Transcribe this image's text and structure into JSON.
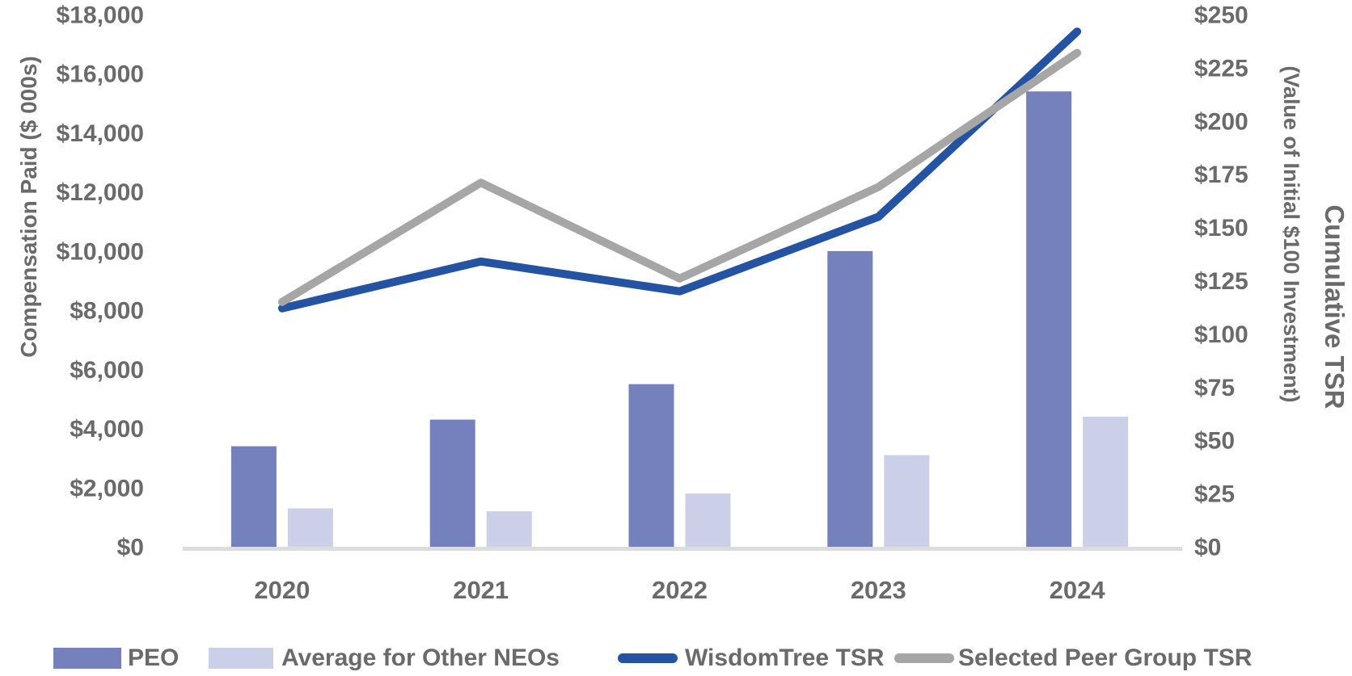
{
  "colors": {
    "peo_bar": "#7581BD",
    "neo_bar": "#CBD0E8",
    "wisdomtree_line": "#2453A4",
    "peer_line": "#A6A6A6",
    "axis_line": "#DCDCDC",
    "text": "#6A6A6A",
    "background": "#FFFFFF"
  },
  "chart_data": {
    "type": "combo_bar_line",
    "grid": false,
    "legend_position": "bottom",
    "categories": [
      "2020",
      "2021",
      "2022",
      "2023",
      "2024"
    ],
    "bar_series": [
      {
        "name": "PEO",
        "axis": "left",
        "color": "#7581BD",
        "values": [
          3400,
          4300,
          5500,
          10000,
          15400
        ]
      },
      {
        "name": "Average for Other NEOs",
        "axis": "left",
        "color": "#CBD0E8",
        "values": [
          1300,
          1200,
          1800,
          3100,
          4400
        ]
      }
    ],
    "line_series": [
      {
        "name": "WisdomTree TSR",
        "axis": "right",
        "color": "#2453A4",
        "values": [
          112,
          134,
          120,
          155,
          242
        ]
      },
      {
        "name": "Selected Peer Group TSR",
        "axis": "right",
        "color": "#A6A6A6",
        "values": [
          115,
          171,
          126,
          169,
          232
        ]
      }
    ],
    "left_axis": {
      "title": "Compensation Paid ($ 000s)",
      "min": 0,
      "max": 18000,
      "step": 2000,
      "tick_labels": [
        "$0",
        "$2,000",
        "$4,000",
        "$6,000",
        "$8,000",
        "$10,000",
        "$12,000",
        "$14,000",
        "$16,000",
        "$18,000"
      ]
    },
    "right_axis": {
      "title_line1": "Cumulative TSR",
      "title_line2": "(Value of Initial $100 Investment)",
      "min": 0,
      "max": 250,
      "step": 25,
      "tick_labels": [
        "$0",
        "$25",
        "$50",
        "$75",
        "$100",
        "$125",
        "$150",
        "$175",
        "$200",
        "$225",
        "$250"
      ]
    },
    "legend": [
      {
        "label": "PEO",
        "swatch": "bar",
        "color_path": "colors.peo_bar"
      },
      {
        "label": "Average for Other NEOs",
        "swatch": "bar",
        "color_path": "colors.neo_bar"
      },
      {
        "label": "WisdomTree TSR",
        "swatch": "line",
        "color_path": "colors.wisdomtree_line"
      },
      {
        "label": "Selected Peer Group TSR",
        "swatch": "line",
        "color_path": "colors.peer_line"
      }
    ]
  }
}
